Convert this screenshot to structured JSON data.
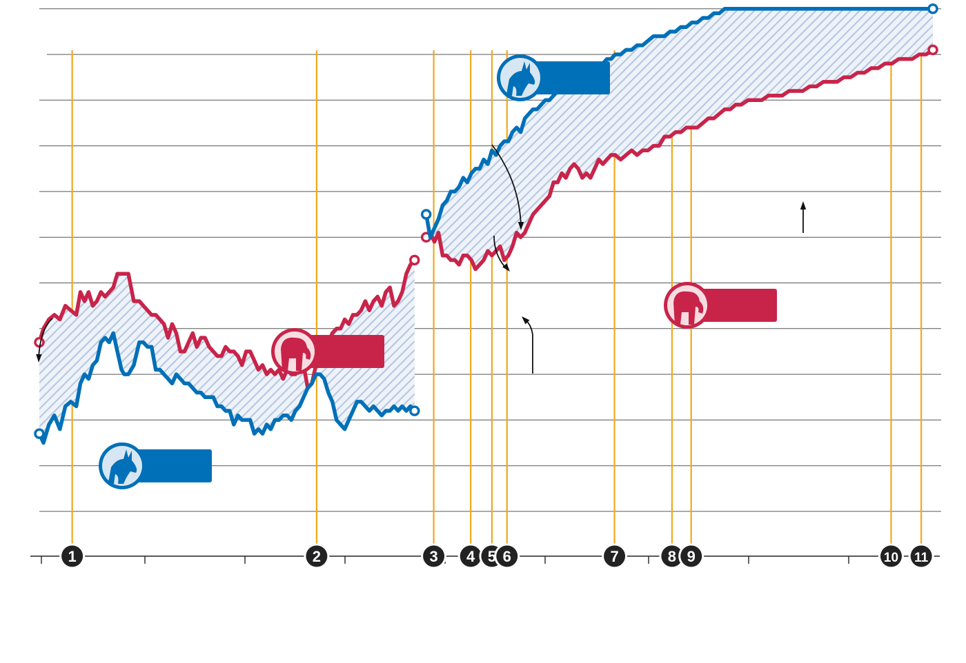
{
  "chart_data": {
    "type": "line",
    "title": "",
    "xlabel": "",
    "ylabel": "",
    "grid": true,
    "legend": "none",
    "x_range": [
      0,
      1305
    ],
    "y_range": [
      0,
      11
    ],
    "colors": {
      "dem": "#0070b8",
      "gop": "#c8244a",
      "event_line": "#f0a81e",
      "grid": "#555555",
      "hatch": "#b4c6e0"
    },
    "segments": [
      {
        "name": "",
        "series": [
          {
            "name": "",
            "party": "gop",
            "x": [
              0,
              6,
              14,
              22,
              30,
              38,
              46,
              54,
              60,
              66,
              72,
              78,
              84,
              90,
              96,
              102,
              108,
              114,
              120,
              124,
              130,
              138,
              146,
              152,
              158,
              164,
              170,
              176,
              182,
              188,
              194,
              200,
              206,
              212,
              218,
              224,
              230,
              236,
              242,
              248,
              254,
              260,
              266,
              272,
              278,
              284,
              290,
              296,
              302,
              308,
              314,
              320,
              326,
              332,
              338,
              344,
              350,
              356,
              362,
              368,
              374,
              380,
              386,
              392,
              398,
              404,
              410,
              416,
              422,
              428,
              434,
              440,
              446,
              452,
              458,
              464,
              470,
              476,
              482,
              488,
              494,
              500,
              506,
              512,
              518,
              524,
              530,
              536,
              542,
              548
            ],
            "y": [
              3.7,
              4.0,
              4.2,
              4.3,
              4.2,
              4.5,
              4.4,
              4.3,
              4.8,
              4.6,
              4.8,
              4.5,
              4.6,
              4.8,
              4.7,
              4.8,
              4.9,
              5.2,
              5.2,
              5.2,
              5.2,
              4.6,
              4.6,
              4.5,
              4.4,
              4.3,
              4.3,
              4.2,
              4.1,
              3.8,
              4.1,
              3.9,
              3.5,
              3.5,
              3.7,
              3.9,
              3.6,
              3.8,
              3.8,
              3.6,
              3.5,
              3.4,
              3.4,
              3.6,
              3.5,
              3.5,
              3.4,
              3.2,
              3.5,
              3.5,
              3.3,
              3.1,
              3.2,
              3.0,
              3.1,
              3.0,
              3.1,
              2.9,
              3.1,
              3.0,
              3.0,
              3.2,
              3.2,
              2.7,
              2.8,
              3.2,
              3.3,
              3.6,
              3.7,
              3.9,
              4.0,
              4.0,
              4.2,
              4.1,
              4.3,
              4.3,
              4.4,
              4.6,
              4.4,
              4.6,
              4.7,
              4.5,
              4.8,
              4.9,
              4.5,
              4.6,
              4.8,
              5.2,
              5.4,
              5.5
            ]
          },
          {
            "name": "",
            "party": "dem",
            "x": [
              0,
              6,
              14,
              22,
              30,
              38,
              46,
              54,
              60,
              66,
              72,
              78,
              84,
              90,
              96,
              102,
              108,
              114,
              120,
              124,
              130,
              138,
              146,
              152,
              158,
              164,
              170,
              176,
              182,
              188,
              194,
              200,
              206,
              212,
              218,
              224,
              230,
              236,
              242,
              248,
              254,
              260,
              266,
              272,
              278,
              284,
              290,
              296,
              302,
              308,
              314,
              320,
              326,
              332,
              338,
              344,
              350,
              356,
              362,
              368,
              374,
              380,
              386,
              392,
              398,
              404,
              410,
              416,
              422,
              428,
              434,
              440,
              446,
              452,
              458,
              464,
              470,
              476,
              482,
              488,
              494,
              500,
              506,
              512,
              518,
              524,
              530,
              536,
              542,
              548
            ],
            "y": [
              1.7,
              1.5,
              1.9,
              2.1,
              1.8,
              2.3,
              2.4,
              2.3,
              2.8,
              3.0,
              2.9,
              3.2,
              3.3,
              3.7,
              3.8,
              3.7,
              3.9,
              3.5,
              3.1,
              3.0,
              3.0,
              3.2,
              3.7,
              3.7,
              3.6,
              3.6,
              3.1,
              3.1,
              3.0,
              2.9,
              2.8,
              3.0,
              2.9,
              2.8,
              2.8,
              2.7,
              2.6,
              2.6,
              2.5,
              2.5,
              2.5,
              2.3,
              2.3,
              2.2,
              2.2,
              1.9,
              2.1,
              2.0,
              2.0,
              2.0,
              1.7,
              1.8,
              1.7,
              1.9,
              1.8,
              2.0,
              2.0,
              2.1,
              2.1,
              2.0,
              2.2,
              2.3,
              2.5,
              2.7,
              2.8,
              3.0,
              3.0,
              2.9,
              2.6,
              2.4,
              2.0,
              1.9,
              1.8,
              2.0,
              2.2,
              2.4,
              2.4,
              2.3,
              2.2,
              2.3,
              2.2,
              2.1,
              2.2,
              2.2,
              2.3,
              2.2,
              2.3,
              2.2,
              2.3,
              2.2
            ]
          }
        ]
      },
      {
        "name": "",
        "series": [
          {
            "name": "",
            "party": "gop",
            "x": [
              565,
              571,
              577,
              583,
              589,
              595,
              601,
              607,
              613,
              619,
              625,
              631,
              637,
              643,
              649,
              655,
              661,
              667,
              673,
              679,
              685,
              691,
              697,
              703,
              709,
              715,
              721,
              727,
              733,
              739,
              745,
              751,
              757,
              763,
              769,
              775,
              781,
              787,
              793,
              799,
              805,
              811,
              817,
              823,
              829,
              835,
              841,
              849,
              857,
              865,
              873,
              881,
              889,
              897,
              905,
              913,
              921,
              929,
              937,
              945,
              953,
              961,
              969,
              977,
              985,
              993,
              1001,
              1009,
              1017,
              1025,
              1035,
              1045,
              1055,
              1065,
              1075,
              1085,
              1095,
              1105,
              1115,
              1125,
              1135,
              1145,
              1155,
              1165,
              1175,
              1185,
              1195,
              1205,
              1215,
              1225,
              1235,
              1245,
              1255,
              1265,
              1275,
              1285,
              1295,
              1305
            ],
            "y": [
              6.0,
              6.1,
              5.9,
              6.1,
              5.6,
              5.6,
              5.5,
              5.5,
              5.4,
              5.6,
              5.6,
              5.5,
              5.3,
              5.4,
              5.5,
              5.7,
              5.6,
              5.7,
              5.8,
              5.5,
              5.6,
              5.8,
              6.1,
              6.0,
              6.1,
              6.3,
              6.5,
              6.6,
              6.7,
              6.8,
              6.9,
              7.2,
              7.2,
              7.4,
              7.3,
              7.5,
              7.6,
              7.5,
              7.3,
              7.4,
              7.3,
              7.5,
              7.7,
              7.6,
              7.7,
              7.8,
              7.8,
              7.7,
              7.8,
              7.9,
              7.8,
              7.9,
              7.9,
              8.0,
              8.0,
              8.2,
              8.2,
              8.3,
              8.3,
              8.4,
              8.4,
              8.4,
              8.5,
              8.6,
              8.6,
              8.7,
              8.8,
              8.8,
              8.9,
              8.9,
              9.0,
              9.0,
              9.0,
              9.1,
              9.1,
              9.1,
              9.2,
              9.2,
              9.2,
              9.3,
              9.3,
              9.4,
              9.4,
              9.4,
              9.5,
              9.5,
              9.6,
              9.6,
              9.7,
              9.7,
              9.8,
              9.8,
              9.9,
              9.9,
              9.9,
              10.0,
              10.0,
              10.1
            ]
          },
          {
            "name": "",
            "party": "dem",
            "x": [
              565,
              571,
              577,
              583,
              589,
              595,
              601,
              607,
              613,
              619,
              625,
              631,
              637,
              643,
              649,
              655,
              661,
              667,
              673,
              679,
              685,
              691,
              697,
              703,
              709,
              715,
              721,
              727,
              733,
              739,
              745,
              751,
              757,
              763,
              769,
              775,
              781,
              787,
              793,
              799,
              805,
              811,
              817,
              823,
              829,
              835,
              841,
              849,
              857,
              865,
              873,
              881,
              889,
              897,
              905,
              913,
              921,
              929,
              937,
              945,
              953,
              961,
              969,
              977,
              985,
              993,
              1001,
              1009,
              1017,
              1025,
              1035,
              1045,
              1055,
              1065,
              1075,
              1085,
              1095,
              1105,
              1115,
              1125,
              1135,
              1145,
              1155,
              1165,
              1175,
              1185,
              1195,
              1205,
              1215,
              1225,
              1235,
              1245,
              1255,
              1265,
              1275,
              1285,
              1295,
              1305
            ],
            "y": [
              6.5,
              6.0,
              6.2,
              6.4,
              6.7,
              6.8,
              7.0,
              7.0,
              7.1,
              7.3,
              7.2,
              7.4,
              7.5,
              7.5,
              7.7,
              7.6,
              7.9,
              7.8,
              8.0,
              8.1,
              8.1,
              8.3,
              8.4,
              8.3,
              8.6,
              8.7,
              8.8,
              8.8,
              8.9,
              9.0,
              9.0,
              9.1,
              9.2,
              9.3,
              9.2,
              9.3,
              9.4,
              9.4,
              9.5,
              9.6,
              9.6,
              9.7,
              9.8,
              9.8,
              9.9,
              9.9,
              10.0,
              10.0,
              10.1,
              10.1,
              10.2,
              10.2,
              10.3,
              10.4,
              10.4,
              10.4,
              10.5,
              10.5,
              10.6,
              10.6,
              10.7,
              10.7,
              10.8,
              10.8,
              10.9,
              10.9,
              11.0,
              11.0,
              11.0,
              11.0,
              11.0,
              11.0,
              11.0,
              11.0,
              11.0,
              11.0,
              11.0,
              11.0,
              11.0,
              11.0,
              11.0,
              11.0,
              11.0,
              11.0,
              11.0,
              11.0,
              11.0,
              11.0,
              11.0,
              11.0,
              11.0,
              11.0,
              11.0,
              11.0,
              11.0,
              11.0,
              11.0,
              11.0
            ]
          }
        ]
      }
    ],
    "events": [
      {
        "label": "1",
        "x": 48
      },
      {
        "label": "2",
        "x": 405
      },
      {
        "label": "3",
        "x": 576
      },
      {
        "label": "4",
        "x": 630
      },
      {
        "label": "5",
        "x": 661
      },
      {
        "label": "6",
        "x": 683
      },
      {
        "label": "7",
        "x": 840
      },
      {
        "label": "8",
        "x": 924
      },
      {
        "label": "9",
        "x": 952
      },
      {
        "label": "10",
        "x": 1244
      },
      {
        "label": "11",
        "x": 1288
      }
    ],
    "badges": [
      {
        "party": "dem",
        "icon": "donkey-icon",
        "text": ""
      },
      {
        "party": "gop",
        "icon": "elephant-icon",
        "text": ""
      },
      {
        "party": "dem",
        "icon": "donkey-icon",
        "text": ""
      },
      {
        "party": "gop",
        "icon": "elephant-icon",
        "text": ""
      }
    ]
  }
}
